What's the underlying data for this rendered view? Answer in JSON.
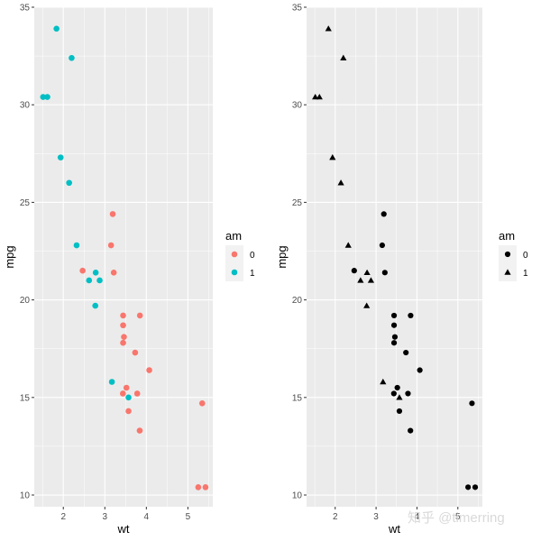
{
  "watermark": "知乎 @timerring",
  "chart_data": [
    {
      "type": "scatter",
      "xlabel": "wt",
      "ylabel": "mpg",
      "xlim": [
        1.3,
        5.6
      ],
      "ylim": [
        9.4,
        35.0
      ],
      "xticks": [
        2,
        3,
        4,
        5
      ],
      "yticks": [
        10,
        15,
        20,
        25,
        30,
        35
      ],
      "grid": true,
      "legend": {
        "title": "am",
        "position": "right",
        "entries": [
          "0",
          "1"
        ]
      },
      "encoding": "color",
      "colors": {
        "0": "#F8766D",
        "1": "#00BFC4"
      },
      "series": [
        {
          "name": "0",
          "points": [
            [
              3.215,
              21.4
            ],
            [
              3.44,
              18.7
            ],
            [
              3.46,
              18.1
            ],
            [
              3.57,
              14.3
            ],
            [
              3.19,
              24.4
            ],
            [
              3.15,
              22.8
            ],
            [
              3.44,
              19.2
            ],
            [
              3.44,
              17.8
            ],
            [
              4.07,
              16.4
            ],
            [
              3.73,
              17.3
            ],
            [
              3.78,
              15.2
            ],
            [
              5.25,
              10.4
            ],
            [
              5.424,
              10.4
            ],
            [
              5.345,
              14.7
            ],
            [
              2.465,
              21.5
            ],
            [
              3.52,
              15.5
            ],
            [
              3.435,
              15.2
            ],
            [
              3.84,
              13.3
            ],
            [
              3.845,
              19.2
            ]
          ]
        },
        {
          "name": "1",
          "points": [
            [
              2.62,
              21.0
            ],
            [
              2.875,
              21.0
            ],
            [
              2.32,
              22.8
            ],
            [
              2.2,
              32.4
            ],
            [
              1.615,
              30.4
            ],
            [
              1.835,
              33.9
            ],
            [
              1.935,
              27.3
            ],
            [
              2.14,
              26.0
            ],
            [
              1.513,
              30.4
            ],
            [
              3.17,
              15.8
            ],
            [
              2.77,
              19.7
            ],
            [
              3.57,
              15.0
            ],
            [
              2.78,
              21.4
            ]
          ]
        }
      ]
    },
    {
      "type": "scatter",
      "xlabel": "wt",
      "ylabel": "mpg",
      "xlim": [
        1.3,
        5.6
      ],
      "ylim": [
        9.4,
        35.0
      ],
      "xticks": [
        2,
        3,
        4,
        5
      ],
      "yticks": [
        10,
        15,
        20,
        25,
        30,
        35
      ],
      "grid": true,
      "legend": {
        "title": "am",
        "position": "right",
        "entries": [
          "0",
          "1"
        ]
      },
      "encoding": "shape",
      "shapes": {
        "0": "circle",
        "1": "triangle"
      },
      "series": [
        {
          "name": "0",
          "points": [
            [
              3.215,
              21.4
            ],
            [
              3.44,
              18.7
            ],
            [
              3.46,
              18.1
            ],
            [
              3.57,
              14.3
            ],
            [
              3.19,
              24.4
            ],
            [
              3.15,
              22.8
            ],
            [
              3.44,
              19.2
            ],
            [
              3.44,
              17.8
            ],
            [
              4.07,
              16.4
            ],
            [
              3.73,
              17.3
            ],
            [
              3.78,
              15.2
            ],
            [
              5.25,
              10.4
            ],
            [
              5.424,
              10.4
            ],
            [
              5.345,
              14.7
            ],
            [
              2.465,
              21.5
            ],
            [
              3.52,
              15.5
            ],
            [
              3.435,
              15.2
            ],
            [
              3.84,
              13.3
            ],
            [
              3.845,
              19.2
            ]
          ]
        },
        {
          "name": "1",
          "points": [
            [
              2.62,
              21.0
            ],
            [
              2.875,
              21.0
            ],
            [
              2.32,
              22.8
            ],
            [
              2.2,
              32.4
            ],
            [
              1.615,
              30.4
            ],
            [
              1.835,
              33.9
            ],
            [
              1.935,
              27.3
            ],
            [
              2.14,
              26.0
            ],
            [
              1.513,
              30.4
            ],
            [
              3.17,
              15.8
            ],
            [
              2.77,
              19.7
            ],
            [
              3.57,
              15.0
            ],
            [
              2.78,
              21.4
            ]
          ]
        }
      ]
    }
  ]
}
